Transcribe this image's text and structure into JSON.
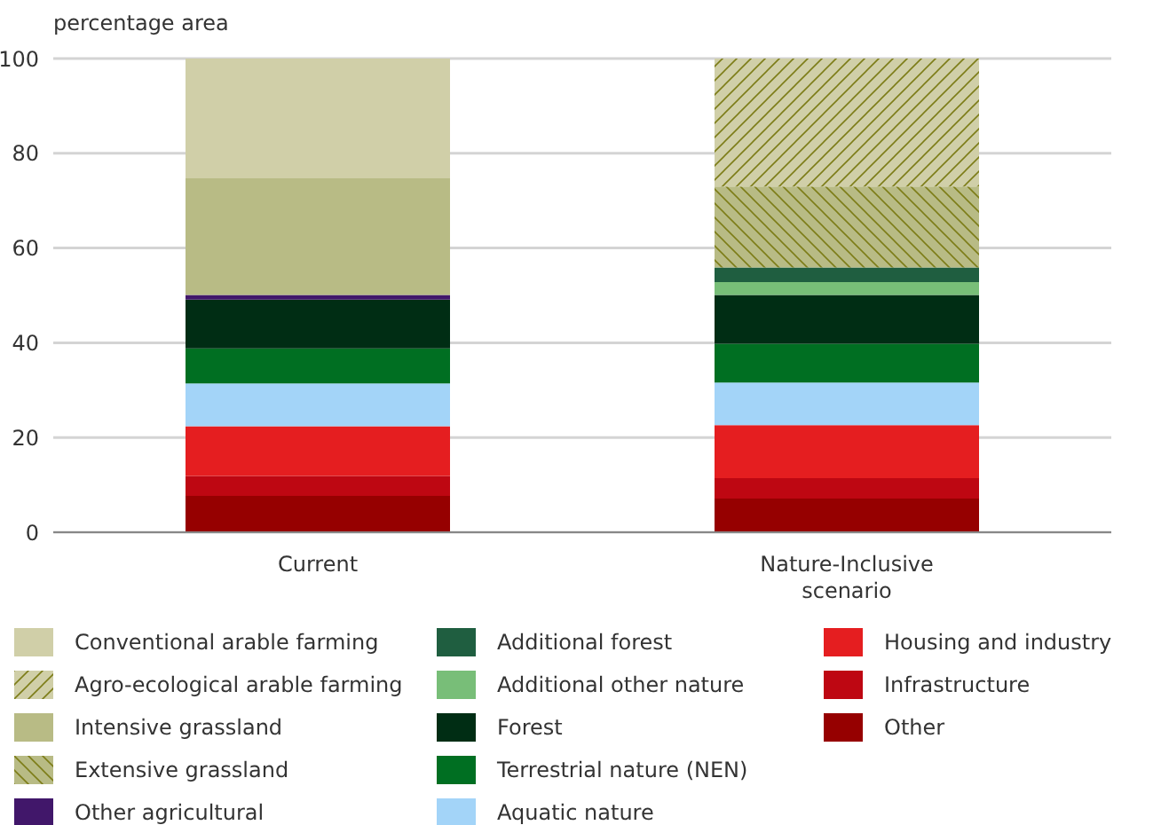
{
  "chart_data": {
    "type": "bar",
    "stacked": true,
    "ylabel": "percentage area",
    "categories": [
      "Current",
      "Nature-Inclusive scenario"
    ],
    "ylim": [
      0,
      100
    ],
    "yticks": [
      0,
      20,
      40,
      60,
      80,
      100
    ],
    "grid": "y",
    "legend": "bottom",
    "series": [
      {
        "name": "Other",
        "color": "#960000",
        "values": [
          7.7,
          7.1
        ]
      },
      {
        "name": "Infrastructure",
        "color": "#be0712",
        "values": [
          4.2,
          4.3
        ]
      },
      {
        "name": "Housing and industry",
        "color": "#e51e20",
        "values": [
          10.5,
          11.2
        ]
      },
      {
        "name": "Aquatic nature",
        "color": "#a3d4f8",
        "values": [
          9.0,
          9.0
        ]
      },
      {
        "name": "Terrestrial nature (NEN)",
        "color": "#006f22",
        "values": [
          7.4,
          8.2
        ]
      },
      {
        "name": "Forest",
        "color": "#002d14",
        "values": [
          10.3,
          10.3
        ]
      },
      {
        "name": "Additional other nature",
        "color": "#78be78",
        "values": [
          0,
          2.7
        ]
      },
      {
        "name": "Additional forest",
        "color": "#1f5e40",
        "values": [
          0,
          3.1
        ]
      },
      {
        "name": "Other agricultural",
        "color": "#41176a",
        "values": [
          1.0,
          0
        ]
      },
      {
        "name": "Extensive grassland",
        "color": "#b8bb85",
        "values": [
          0,
          17.1
        ]
      },
      {
        "name": "Intensive grassland",
        "color": "#b8bb85",
        "values": [
          24.6,
          0
        ]
      },
      {
        "name": "Agro-ecological arable farming",
        "color": "#d0cfa8",
        "values": [
          0,
          27.0
        ]
      },
      {
        "name": "Conventional arable farming",
        "color": "#d0cfa8",
        "values": [
          25.3,
          0
        ]
      }
    ]
  }
}
